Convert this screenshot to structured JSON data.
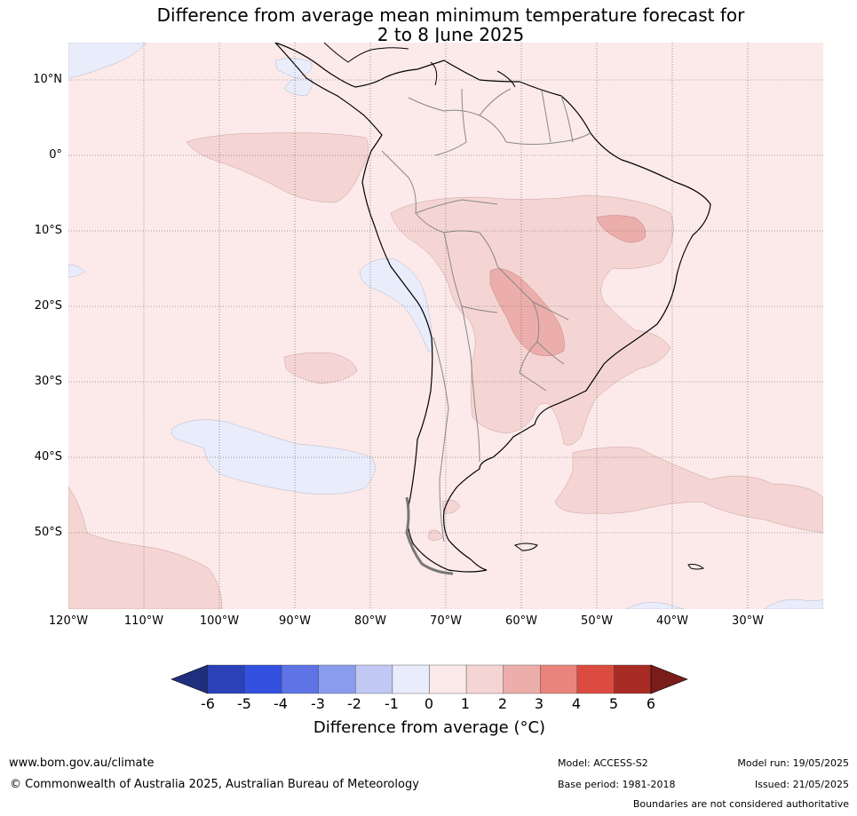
{
  "title_line1": "Difference from average mean minimum temperature forecast for",
  "title_line2": "2 to 8 June 2025",
  "lat_labels": [
    "10°N",
    "0°",
    "10°S",
    "20°S",
    "30°S",
    "40°S",
    "50°S"
  ],
  "lon_labels": [
    "120°W",
    "110°W",
    "100°W",
    "90°W",
    "80°W",
    "70°W",
    "60°W",
    "50°W",
    "40°W",
    "30°W"
  ],
  "colorbar": {
    "ticks": [
      "-6",
      "-5",
      "-4",
      "-3",
      "-2",
      "-1",
      "0",
      "1",
      "2",
      "3",
      "4",
      "5",
      "6"
    ],
    "colors": [
      "#1f2f7e",
      "#2a41b8",
      "#3450e0",
      "#5e74e6",
      "#8a9cee",
      "#c1c8f4",
      "#e8ecfb",
      "#fbeae9",
      "#f5d5d3",
      "#ecaeab",
      "#e8847c",
      "#dc4b3f",
      "#a82b24",
      "#7a1d1a"
    ],
    "label": "Difference from average (°C)"
  },
  "map_colors": {
    "ocean_neutral": "#fbeae9",
    "warm_1_2": "#f5d5d3",
    "warm_2_3": "#ecaeab",
    "cool_0_1": "#e8ecfb",
    "coast": "#000000",
    "borders": "#888888",
    "graticule": "#555555"
  },
  "footer": {
    "site": "www.bom.gov.au/climate",
    "copyright": "© Commonwealth of Australia 2025, Australian Bureau of Meteorology",
    "model": "Model: ACCESS-S2",
    "base_period": "Base period: 1981-2018",
    "model_run": "Model run: 19/05/2025",
    "issued": "Issued: 21/05/2025",
    "disclaimer": "Boundaries are not considered authoritative"
  }
}
